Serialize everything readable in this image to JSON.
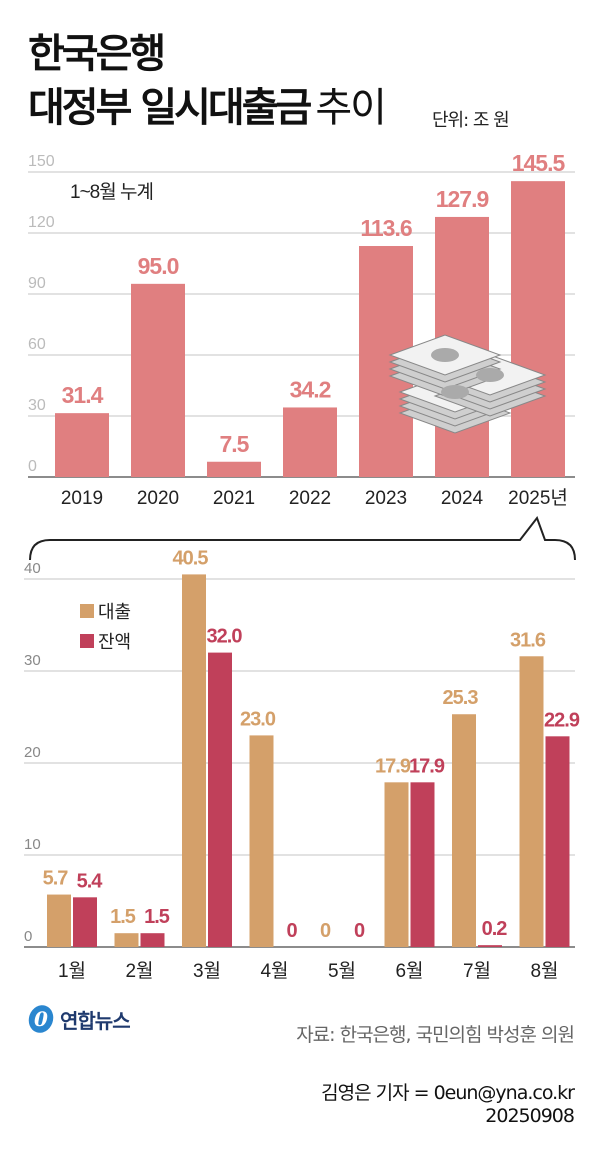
{
  "title": {
    "line1": "한국은행",
    "line2_bold": "대정부 일시대출금",
    "line2_light": "추이"
  },
  "unit": "단위: 조 원",
  "colors": {
    "annual_bar": "#e07f80",
    "loan": "#d4a06a",
    "balance": "#c0405a",
    "grid": "#d9d9d9"
  },
  "chart_data": [
    {
      "type": "bar",
      "annotation": "1~8월 누계",
      "categories": [
        "2019",
        "2020",
        "2021",
        "2022",
        "2023",
        "2024",
        "2025년"
      ],
      "values": [
        31.4,
        95.0,
        7.5,
        34.2,
        113.6,
        127.9,
        145.5
      ],
      "value_labels": [
        "31.4",
        "95.0",
        "7.5",
        "34.2",
        "113.6",
        "127.9",
        "145.5"
      ],
      "yticks": [
        "0",
        "30",
        "60",
        "90",
        "120",
        "150"
      ],
      "ylim": [
        0,
        150
      ],
      "grid": true
    },
    {
      "type": "bar",
      "categories": [
        "1월",
        "2월",
        "3월",
        "4월",
        "5월",
        "6월",
        "7월",
        "8월"
      ],
      "series": [
        {
          "name": "대출",
          "values": [
            5.7,
            1.5,
            40.5,
            23.0,
            0,
            17.9,
            25.3,
            31.6
          ],
          "labels": [
            "5.7",
            "1.5",
            "40.5",
            "23.0",
            "0",
            "17.9",
            "25.3",
            "31.6"
          ]
        },
        {
          "name": "잔액",
          "values": [
            5.4,
            1.5,
            32.0,
            0,
            0,
            17.9,
            0.2,
            22.9
          ],
          "labels": [
            "5.4",
            "1.5",
            "32.0",
            "0",
            "0",
            "17.9",
            "0.2",
            "22.9"
          ]
        }
      ],
      "yticks": [
        "0",
        "10",
        "20",
        "30",
        "40"
      ],
      "ylim": [
        0,
        40
      ],
      "legend": "top-left",
      "grid": true
    }
  ],
  "footer": {
    "logo": "연합뉴스",
    "source": "자료: 한국은행, 국민의힘 박성훈 의원",
    "byline": "김영은 기자 = 0eun@yna.co.kr",
    "date": "20250908"
  }
}
